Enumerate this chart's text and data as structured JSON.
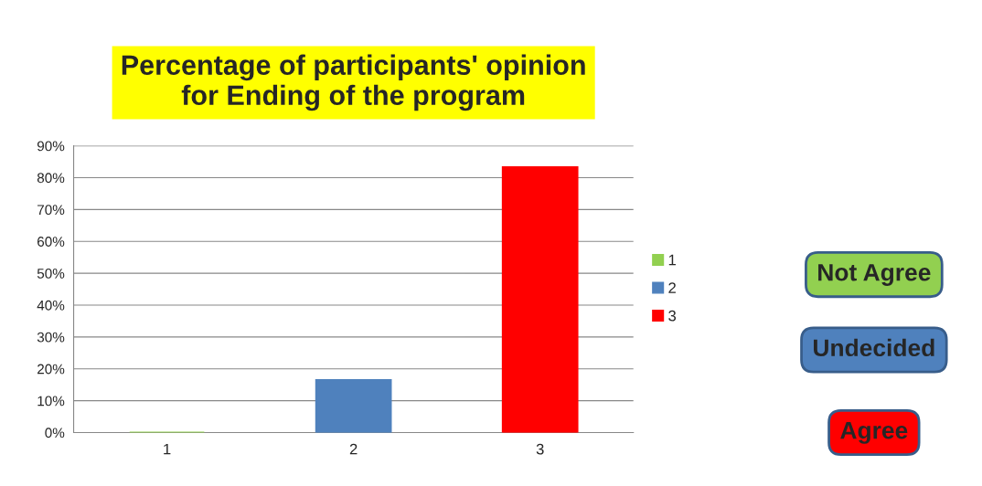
{
  "chart_data": {
    "type": "bar",
    "title": "Percentage of participants' opinion\nfor Ending of the program",
    "categories": [
      "1",
      "2",
      "3"
    ],
    "series": [
      {
        "name": "1",
        "color": "#92d050",
        "values": [
          0,
          null,
          null
        ]
      },
      {
        "name": "2",
        "color": "#4f81bd",
        "values": [
          null,
          16.5,
          null
        ]
      },
      {
        "name": "3",
        "color": "#ff0000",
        "values": [
          null,
          null,
          83.3
        ]
      }
    ],
    "ylim": [
      0,
      90
    ],
    "yticks": [
      {
        "value": 0,
        "label": "0%"
      },
      {
        "value": 10,
        "label": "10%"
      },
      {
        "value": 20,
        "label": "20%"
      },
      {
        "value": 30,
        "label": "30%"
      },
      {
        "value": 40,
        "label": "40%"
      },
      {
        "value": 50,
        "label": "50%"
      },
      {
        "value": 60,
        "label": "60%"
      },
      {
        "value": 70,
        "label": "70%"
      },
      {
        "value": 80,
        "label": "80%"
      },
      {
        "value": 90,
        "label": "90%"
      }
    ],
    "grid": "y",
    "legend": "right",
    "annotations": [
      "Not Agree",
      "Undecided",
      "Agree"
    ]
  }
}
